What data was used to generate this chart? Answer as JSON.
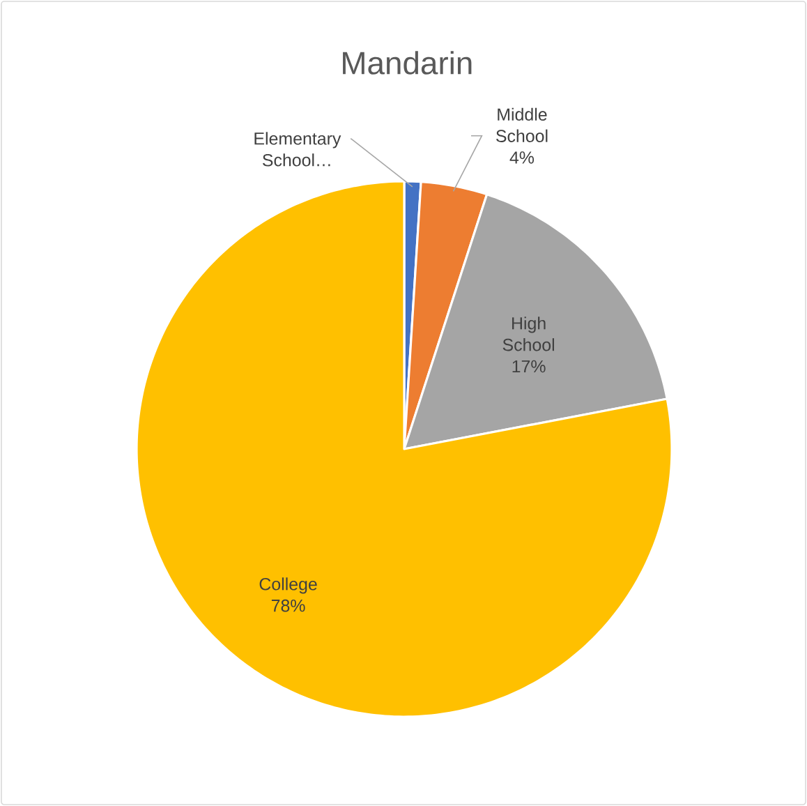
{
  "chart_data": {
    "type": "pie",
    "title": "Mandarin",
    "categories": [
      "Elementary School…",
      "Middle School",
      "High School",
      "College"
    ],
    "values": [
      1,
      4,
      17,
      78
    ],
    "value_labels": [
      null,
      "4%",
      "17%",
      "78%"
    ],
    "colors": [
      "#4472c4",
      "#ed7d31",
      "#a5a5a5",
      "#ffc000"
    ]
  }
}
